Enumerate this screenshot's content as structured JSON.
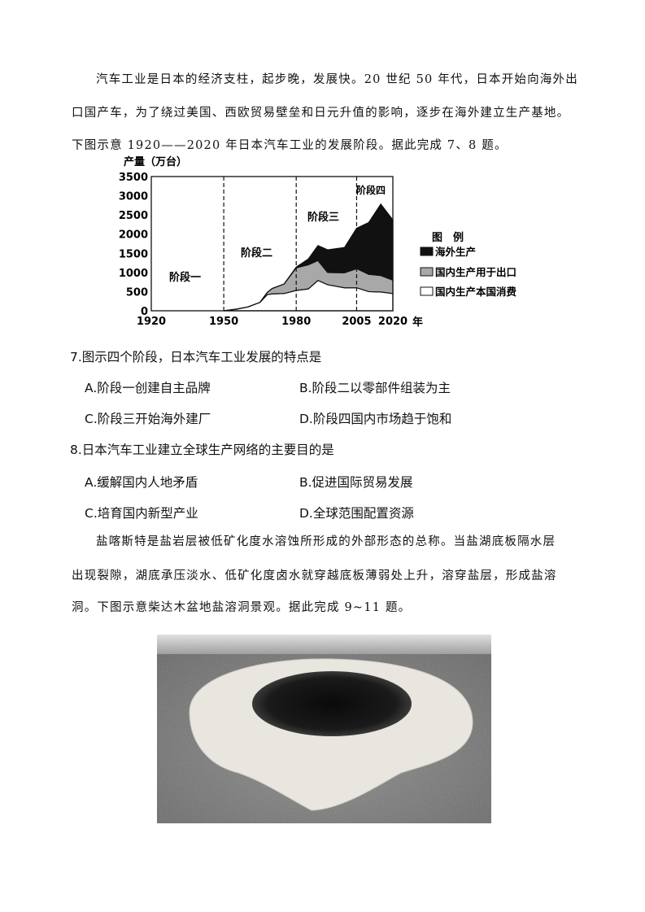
{
  "intro1": {
    "lines": [
      "汽车工业是日本的经济支柱，起步晚，发展快。20 世纪 50 年代，日本开始向海外出",
      "口国产车，为了绕过美国、西欧贸易壁垒和日元升值的影响，逐步在海外建立生产基地。",
      "下图示意 1920——2020 年日本汽车工业的发展阶段。据此完成 7、8 题。"
    ]
  },
  "chart_data": {
    "type": "area",
    "stacked": true,
    "ylabel": "产量（万台）",
    "xlabel": "年",
    "x": [
      1950,
      1955,
      1960,
      1965,
      1968,
      1970,
      1975,
      1980,
      1985,
      1989,
      1993,
      2000,
      2005,
      2010,
      2015,
      2020
    ],
    "series": [
      {
        "name": "国内生产本国消费",
        "color": "#ffffff",
        "values": [
          0,
          40,
          100,
          220,
          420,
          440,
          450,
          530,
          570,
          790,
          680,
          600,
          600,
          500,
          490,
          450
        ]
      },
      {
        "name": "国内生产用于出口",
        "color": "#a8a8a8",
        "values": [
          0,
          0,
          0,
          0,
          60,
          140,
          250,
          590,
          630,
          520,
          320,
          390,
          500,
          450,
          430,
          350
        ]
      },
      {
        "name": "海外生产",
        "color": "#111111",
        "values": [
          0,
          0,
          0,
          0,
          0,
          0,
          0,
          20,
          150,
          390,
          590,
          660,
          1050,
          1350,
          1860,
          1570
        ]
      }
    ],
    "xlim": [
      1920,
      2020
    ],
    "ylim": [
      0,
      3500
    ],
    "xticks": [
      "1920",
      "1950",
      "1980",
      "2005",
      "2020"
    ],
    "yticks": [
      "0",
      "500",
      "1000",
      "1500",
      "2000",
      "2500",
      "3000",
      "3500"
    ],
    "stage_dividers": [
      1950,
      1980,
      2005
    ],
    "stage_labels": [
      "阶段一",
      "阶段二",
      "阶段三",
      "阶段四"
    ],
    "legend_title": "图　例",
    "legend_position": "right",
    "grid": false
  },
  "q7": {
    "stem": "7.图示四个阶段，日本汽车工业发展的特点是",
    "options": [
      "A.阶段一创建自主品牌",
      "B.阶段二以零部件组装为主",
      "C.阶段三开始海外建厂",
      "D.阶段四国内市场趋于饱和"
    ]
  },
  "q8": {
    "stem": "8.日本汽车工业建立全球生产网络的主要目的是",
    "options": [
      "A.缓解国内人地矛盾",
      "B.促进国际贸易发展",
      "C.培育国内新型产业",
      "D.全球范围配置资源"
    ]
  },
  "intro2": {
    "lines": [
      "盐喀斯特是盐岩层被低矿化度水溶蚀所形成的外部形态的总称。当盐湖底板隔水层",
      "出现裂隙，湖底承压淡水、低矿化度卤水就穿越底板薄弱处上升，溶穿盐层，形成盐溶",
      "洞。下图示意柴达木盆地盐溶洞景观。据此完成 9~11 题。"
    ]
  }
}
